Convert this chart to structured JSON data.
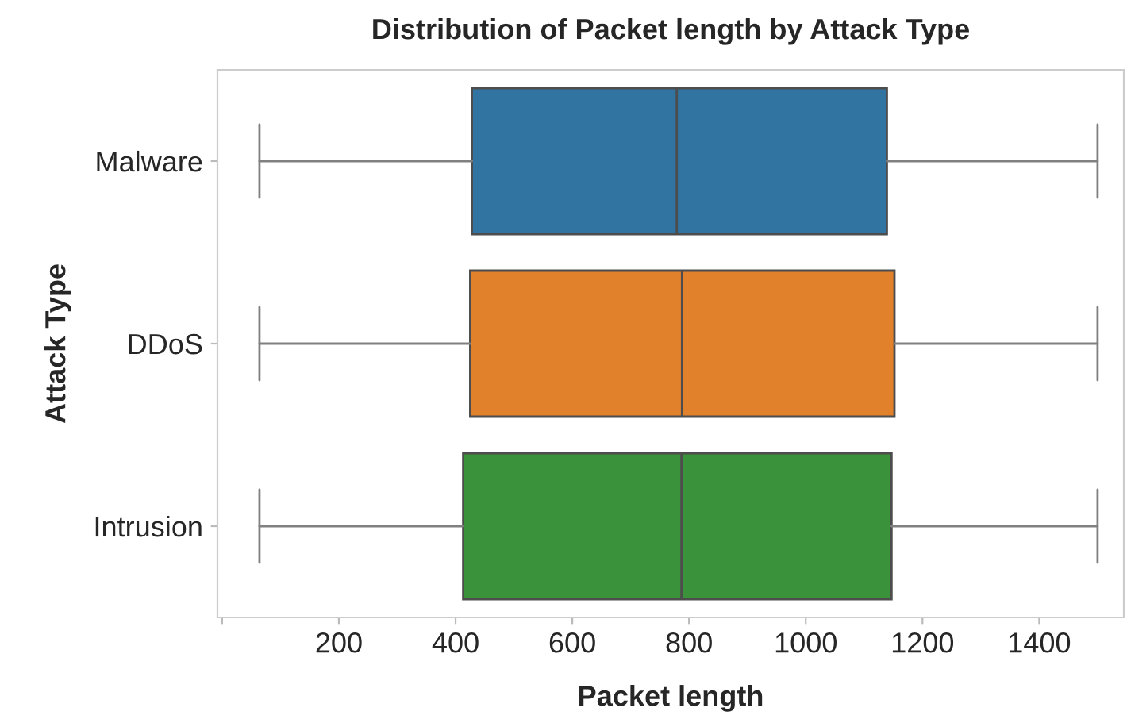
{
  "chart_data": {
    "type": "box",
    "orientation": "horizontal",
    "title": "Distribution of Packet length by Attack Type",
    "xlabel": "Packet length",
    "ylabel": "Attack Type",
    "categories": [
      "Malware",
      "DDoS",
      "Intrusion"
    ],
    "colors": [
      "#3274a1",
      "#e1812c",
      "#3a923a"
    ],
    "boxes": [
      {
        "low": 64,
        "q1": 428,
        "median": 779,
        "q3": 1139,
        "high": 1500
      },
      {
        "low": 64,
        "q1": 425,
        "median": 788,
        "q3": 1152,
        "high": 1500
      },
      {
        "low": 64,
        "q1": 413,
        "median": 787,
        "q3": 1147,
        "high": 1500
      }
    ],
    "xlim": [
      -8,
      1545
    ],
    "xticks": [
      {
        "value": 0,
        "label": null
      },
      200,
      400,
      600,
      800,
      1000,
      1200,
      1400
    ],
    "grid": false
  }
}
